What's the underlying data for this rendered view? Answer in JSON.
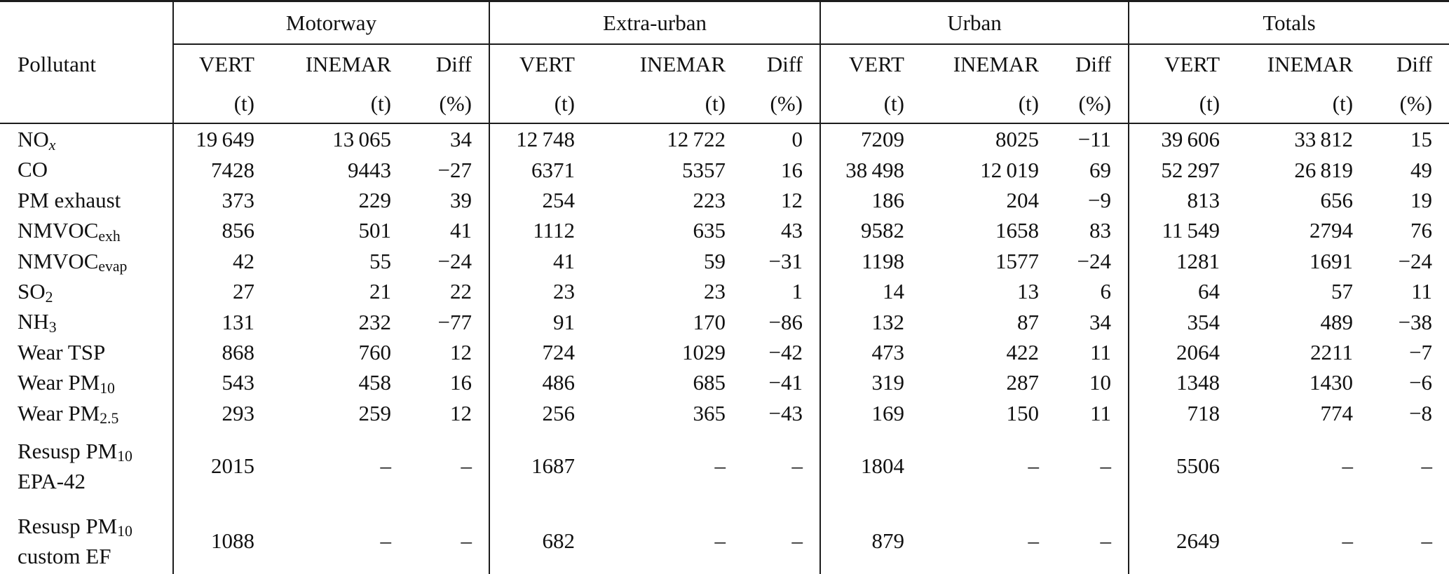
{
  "table": {
    "pollutant_header": "Pollutant",
    "groups": [
      {
        "label": "Motorway"
      },
      {
        "label": "Extra-urban"
      },
      {
        "label": "Urban"
      },
      {
        "label": "Totals"
      }
    ],
    "columns": {
      "vert": "VERT",
      "inemar": "INEMAR",
      "diff": "Diff",
      "t_unit": "(t)",
      "pct_unit": "(%)"
    },
    "rows": [
      {
        "label_lines": [
          [
            {
              "text": "NO"
            },
            {
              "text": "x",
              "sub": true,
              "italic": true
            }
          ]
        ],
        "values": [
          "19 649",
          "13 065",
          "34",
          "12 748",
          "12 722",
          "0",
          "7209",
          "8025",
          "−11",
          "39 606",
          "33 812",
          "15"
        ]
      },
      {
        "label_lines": [
          [
            {
              "text": "CO"
            }
          ]
        ],
        "values": [
          "7428",
          "9443",
          "−27",
          "6371",
          "5357",
          "16",
          "38 498",
          "12 019",
          "69",
          "52 297",
          "26 819",
          "49"
        ]
      },
      {
        "label_lines": [
          [
            {
              "text": "PM exhaust"
            }
          ]
        ],
        "values": [
          "373",
          "229",
          "39",
          "254",
          "223",
          "12",
          "186",
          "204",
          "−9",
          "813",
          "656",
          "19"
        ]
      },
      {
        "label_lines": [
          [
            {
              "text": "NMVOC"
            },
            {
              "text": "exh",
              "sub": true
            }
          ]
        ],
        "values": [
          "856",
          "501",
          "41",
          "1112",
          "635",
          "43",
          "9582",
          "1658",
          "83",
          "11 549",
          "2794",
          "76"
        ]
      },
      {
        "label_lines": [
          [
            {
              "text": "NMVOC"
            },
            {
              "text": "evap",
              "sub": true
            }
          ]
        ],
        "values": [
          "42",
          "55",
          "−24",
          "41",
          "59",
          "−31",
          "1198",
          "1577",
          "−24",
          "1281",
          "1691",
          "−24"
        ]
      },
      {
        "label_lines": [
          [
            {
              "text": "SO"
            },
            {
              "text": "2",
              "sub": true
            }
          ]
        ],
        "values": [
          "27",
          "21",
          "22",
          "23",
          "23",
          "1",
          "14",
          "13",
          "6",
          "64",
          "57",
          "11"
        ]
      },
      {
        "label_lines": [
          [
            {
              "text": "NH"
            },
            {
              "text": "3",
              "sub": true
            }
          ]
        ],
        "values": [
          "131",
          "232",
          "−77",
          "91",
          "170",
          "−86",
          "132",
          "87",
          "34",
          "354",
          "489",
          "−38"
        ]
      },
      {
        "label_lines": [
          [
            {
              "text": "Wear TSP"
            }
          ]
        ],
        "values": [
          "868",
          "760",
          "12",
          "724",
          "1029",
          "−42",
          "473",
          "422",
          "11",
          "2064",
          "2211",
          "−7"
        ]
      },
      {
        "label_lines": [
          [
            {
              "text": "Wear PM"
            },
            {
              "text": "10",
              "sub": true
            }
          ]
        ],
        "values": [
          "543",
          "458",
          "16",
          "486",
          "685",
          "−41",
          "319",
          "287",
          "10",
          "1348",
          "1430",
          "−6"
        ]
      },
      {
        "label_lines": [
          [
            {
              "text": "Wear PM"
            },
            {
              "text": "2.5",
              "sub": true
            }
          ]
        ],
        "values": [
          "293",
          "259",
          "12",
          "256",
          "365",
          "−43",
          "169",
          "150",
          "11",
          "718",
          "774",
          "−8"
        ]
      },
      {
        "label_lines": [
          [
            {
              "text": "Resusp PM"
            },
            {
              "text": "10",
              "sub": true
            }
          ],
          [
            {
              "text": "EPA-42"
            }
          ]
        ],
        "values": [
          "2015",
          "–",
          "–",
          "1687",
          "–",
          "–",
          "1804",
          "–",
          "–",
          "5506",
          "–",
          "–"
        ]
      },
      {
        "label_lines": [
          [
            {
              "text": "Resusp PM"
            },
            {
              "text": "10",
              "sub": true
            }
          ],
          [
            {
              "text": "custom EF"
            }
          ]
        ],
        "values": [
          "1088",
          "–",
          "–",
          "682",
          "–",
          "–",
          "879",
          "–",
          "–",
          "2649",
          "–",
          "–"
        ]
      }
    ]
  }
}
